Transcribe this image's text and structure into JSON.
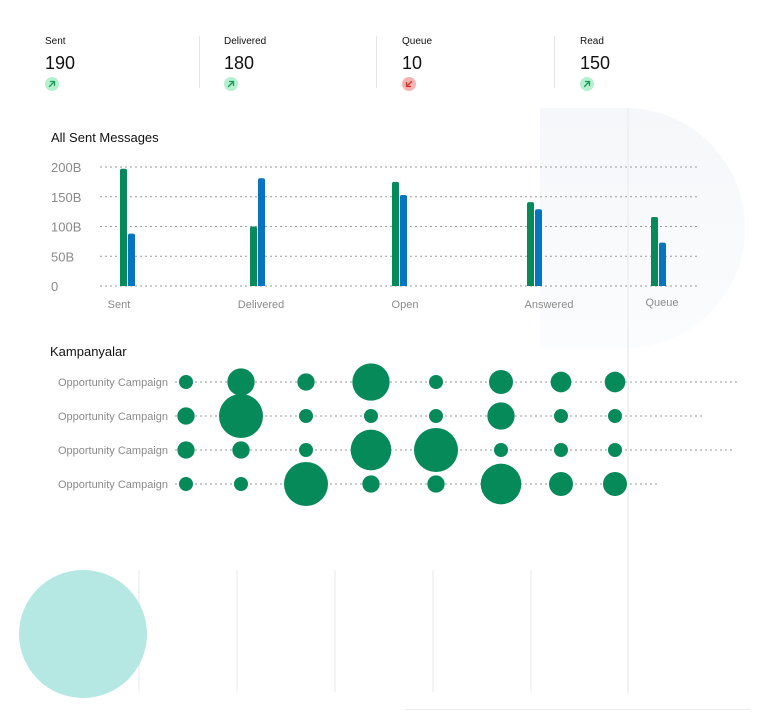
{
  "stats": [
    {
      "label": "Sent",
      "value": "190",
      "trend": "up",
      "trend_icon": "arrow-up-right-icon"
    },
    {
      "label": "Delivered",
      "value": "180",
      "trend": "up",
      "trend_icon": "arrow-up-right-icon"
    },
    {
      "label": "Queue",
      "value": "10",
      "trend": "down",
      "trend_icon": "arrow-down-left-icon"
    },
    {
      "label": "Read",
      "value": "150",
      "trend": "up",
      "trend_icon": "arrow-up-right-icon"
    }
  ],
  "colors": {
    "series_green": "#078a5a",
    "series_blue": "#0774c0",
    "trend_up_bg": "#b6f0cf",
    "trend_up_fg": "#169a5a",
    "trend_down_bg": "#f6b3b3",
    "trend_down_fg": "#d0332c",
    "bubble": "#078a5a",
    "grid": "#9a9a9a",
    "tick_text": "#8a8a8a",
    "deco_circle": "#b5e8e3"
  },
  "chart_data": [
    {
      "type": "bar",
      "title": "All Sent Messages",
      "categories": [
        "Sent",
        "Delivered",
        "Open",
        "Answered",
        "Queue"
      ],
      "series": [
        {
          "values": [
            197,
            100,
            175,
            141,
            116
          ]
        },
        {
          "values": [
            88,
            181,
            153,
            129,
            73
          ]
        }
      ],
      "y_ticks": [
        "200B",
        "150B",
        "100B",
        "50B",
        "0"
      ],
      "ylim": [
        0,
        200
      ],
      "grid": true,
      "grid_style": "dotted"
    },
    {
      "type": "scatter",
      "title": "Kampanyalar",
      "rows": [
        "Opportunity Campaign",
        "Opportunity Campaign",
        "Opportunity Campaign",
        "Opportunity Campaign"
      ],
      "columns": 8,
      "sizes": [
        [
          1,
          5,
          2,
          8,
          1,
          4,
          3,
          3
        ],
        [
          2,
          10,
          1,
          1,
          1,
          5,
          1,
          1
        ],
        [
          2,
          2,
          1,
          9,
          10,
          1,
          1,
          1
        ],
        [
          1,
          1,
          10,
          2,
          2,
          9,
          4,
          4
        ]
      ],
      "grid": true,
      "grid_style": "dotted"
    }
  ]
}
